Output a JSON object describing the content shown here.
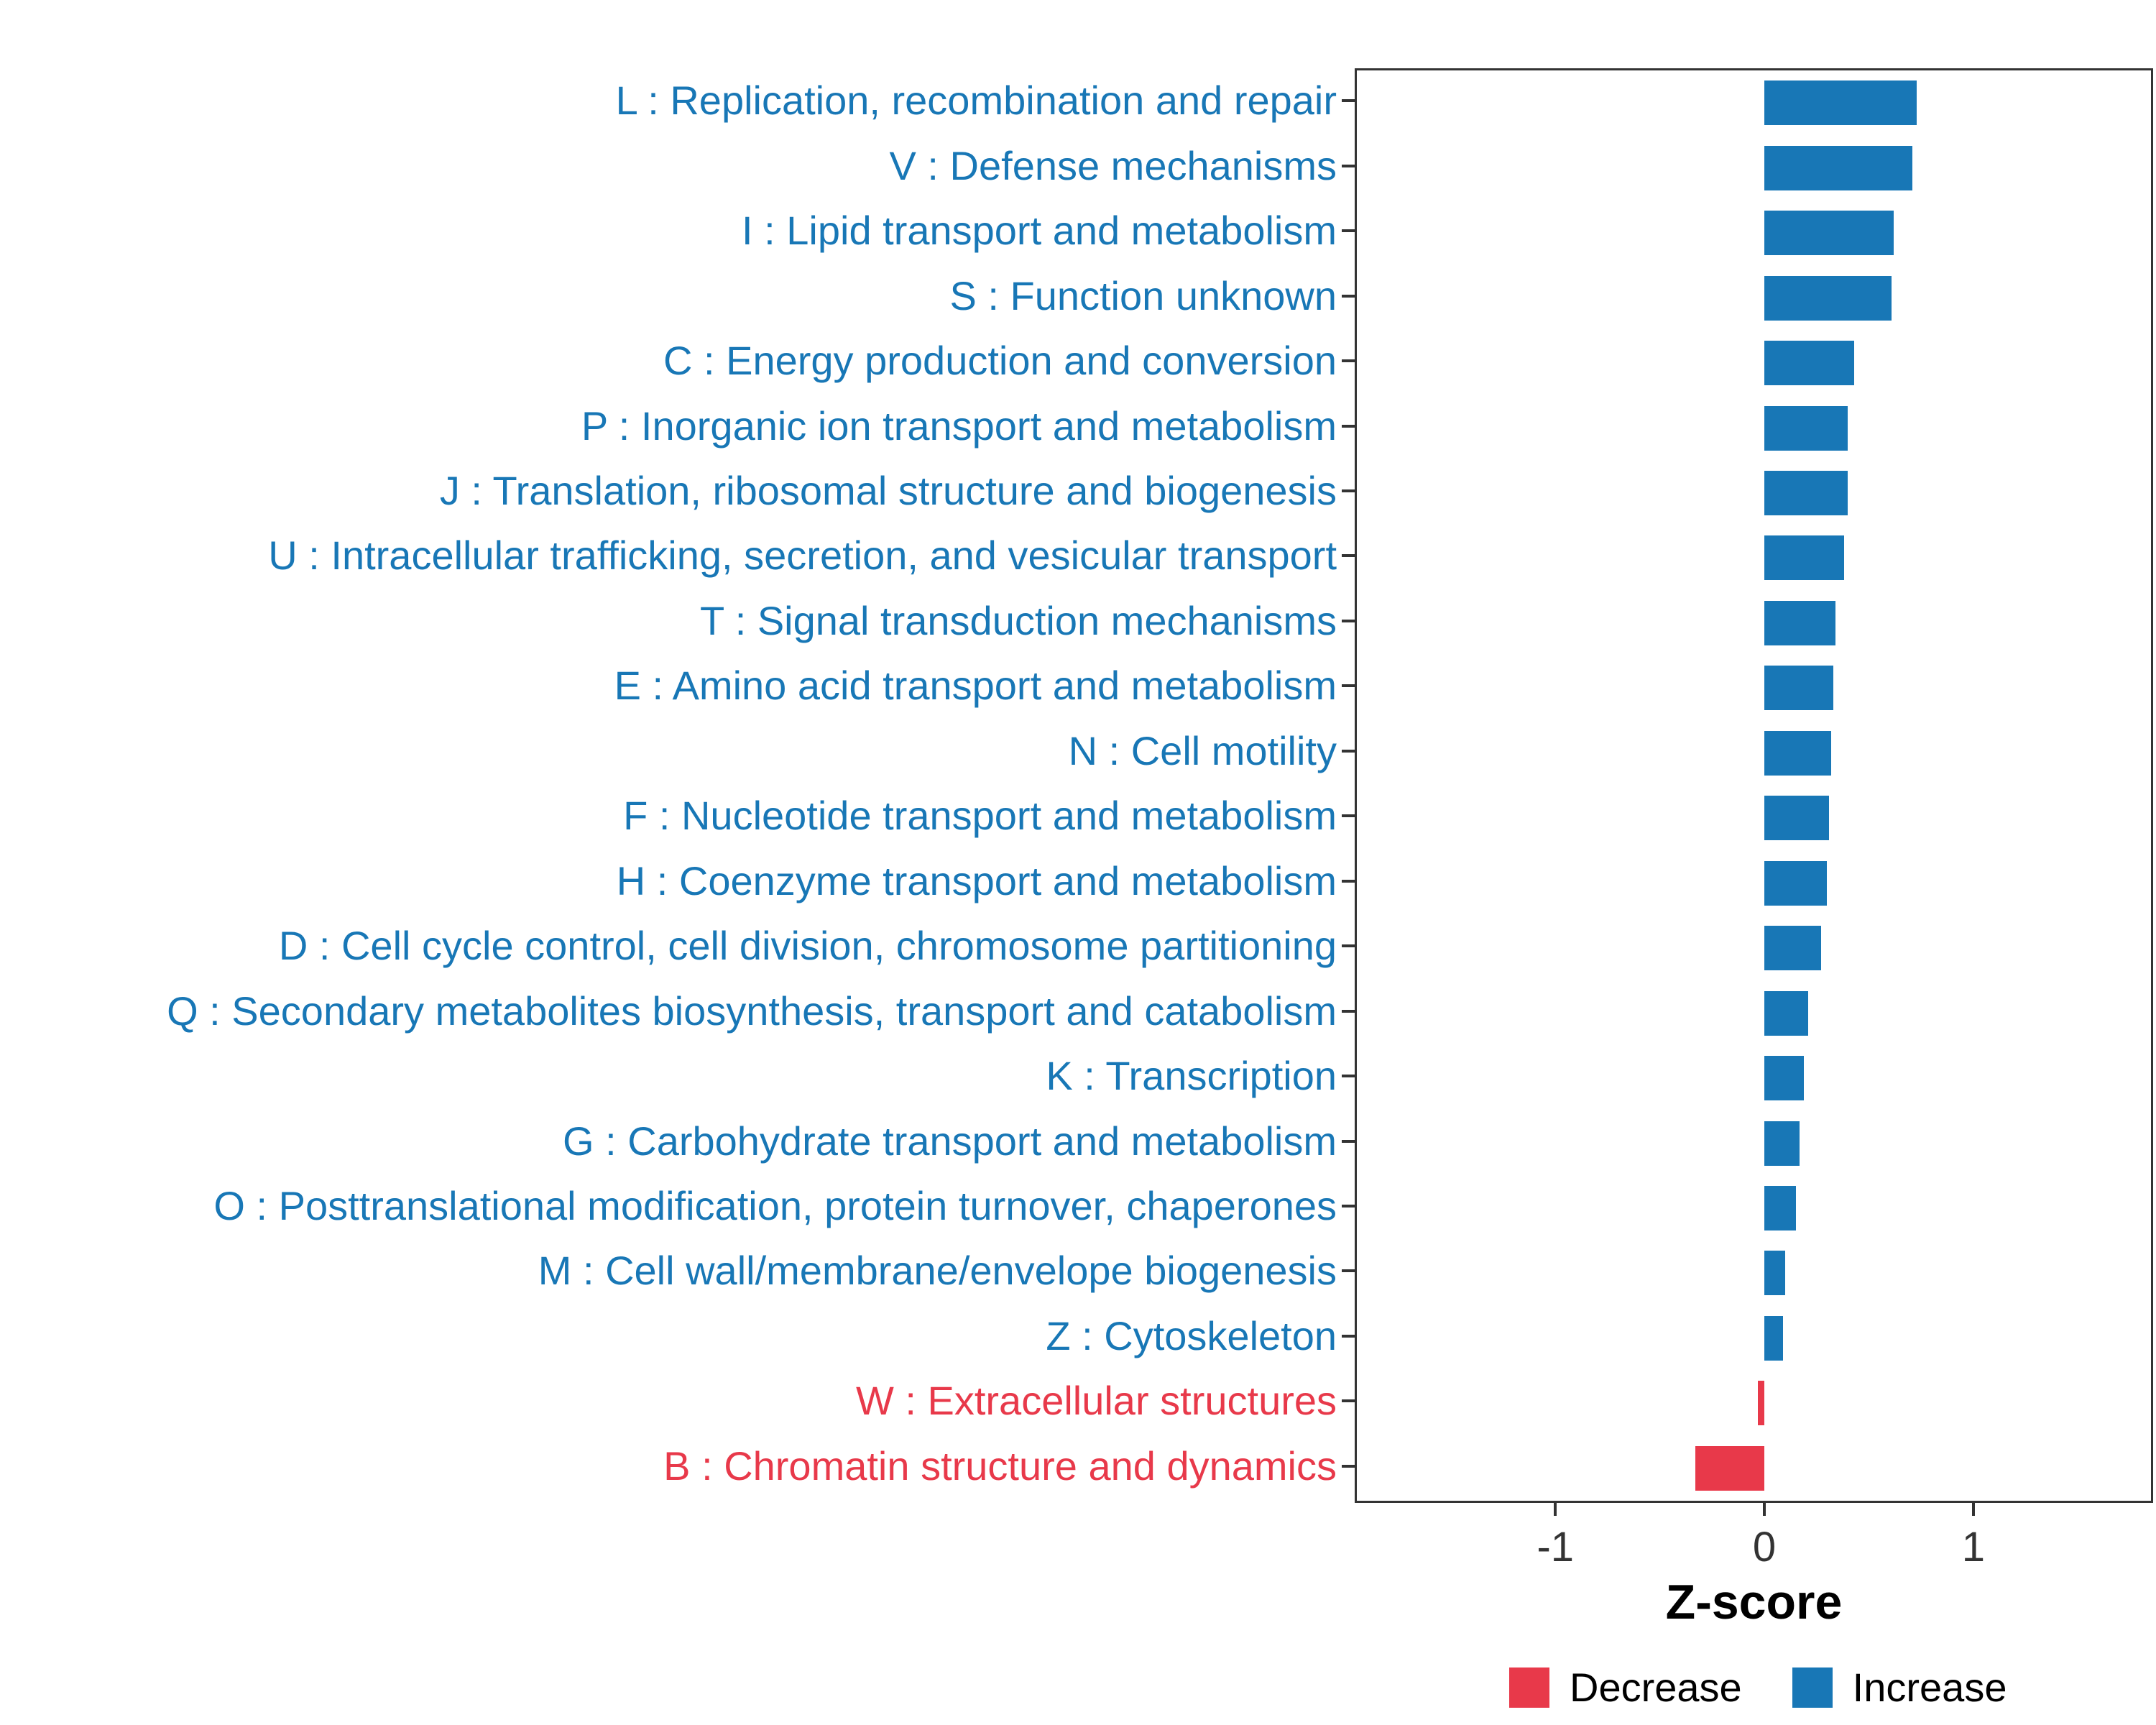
{
  "chart_data": {
    "type": "bar",
    "orientation": "horizontal",
    "title": "",
    "xlabel": "Z-score",
    "ylabel": "",
    "xlim": [
      -1.95,
      1.85
    ],
    "x_ticks": [
      -1,
      0,
      1
    ],
    "grid": false,
    "legend_position": "bottom-right",
    "categories": [
      "L : Replication, recombination and repair",
      "V : Defense mechanisms",
      "I : Lipid transport and metabolism",
      "S : Function unknown",
      "C : Energy production and conversion",
      "P : Inorganic ion transport and metabolism",
      "J : Translation, ribosomal structure and biogenesis",
      "U : Intracellular trafficking, secretion, and vesicular transport",
      "T : Signal transduction mechanisms",
      "E : Amino acid transport and metabolism",
      "N : Cell motility",
      "F : Nucleotide transport and metabolism",
      "H : Coenzyme transport and metabolism",
      "D : Cell cycle control, cell division, chromosome partitioning",
      "Q : Secondary metabolites biosynthesis, transport and catabolism",
      "K : Transcription",
      "G : Carbohydrate transport and metabolism",
      "O : Posttranslational modification, protein turnover, chaperones",
      "M : Cell wall/membrane/envelope biogenesis",
      "Z : Cytoskeleton",
      "W : Extracellular structures",
      "B : Chromatin structure and dynamics"
    ],
    "values": [
      0.73,
      0.71,
      0.62,
      0.61,
      0.43,
      0.4,
      0.4,
      0.38,
      0.34,
      0.33,
      0.32,
      0.31,
      0.3,
      0.27,
      0.21,
      0.19,
      0.17,
      0.15,
      0.1,
      0.09,
      -0.03,
      -0.33
    ],
    "direction": [
      "increase",
      "increase",
      "increase",
      "increase",
      "increase",
      "increase",
      "increase",
      "increase",
      "increase",
      "increase",
      "increase",
      "increase",
      "increase",
      "increase",
      "increase",
      "increase",
      "increase",
      "increase",
      "increase",
      "increase",
      "decrease",
      "decrease"
    ],
    "colors": {
      "increase": "#1877b6",
      "decrease": "#e8394a",
      "axis": "#333333",
      "panel_border": "#333333"
    },
    "legend": [
      {
        "label": "Decrease",
        "color": "#e8394a"
      },
      {
        "label": "Increase",
        "color": "#1877b6"
      }
    ]
  }
}
